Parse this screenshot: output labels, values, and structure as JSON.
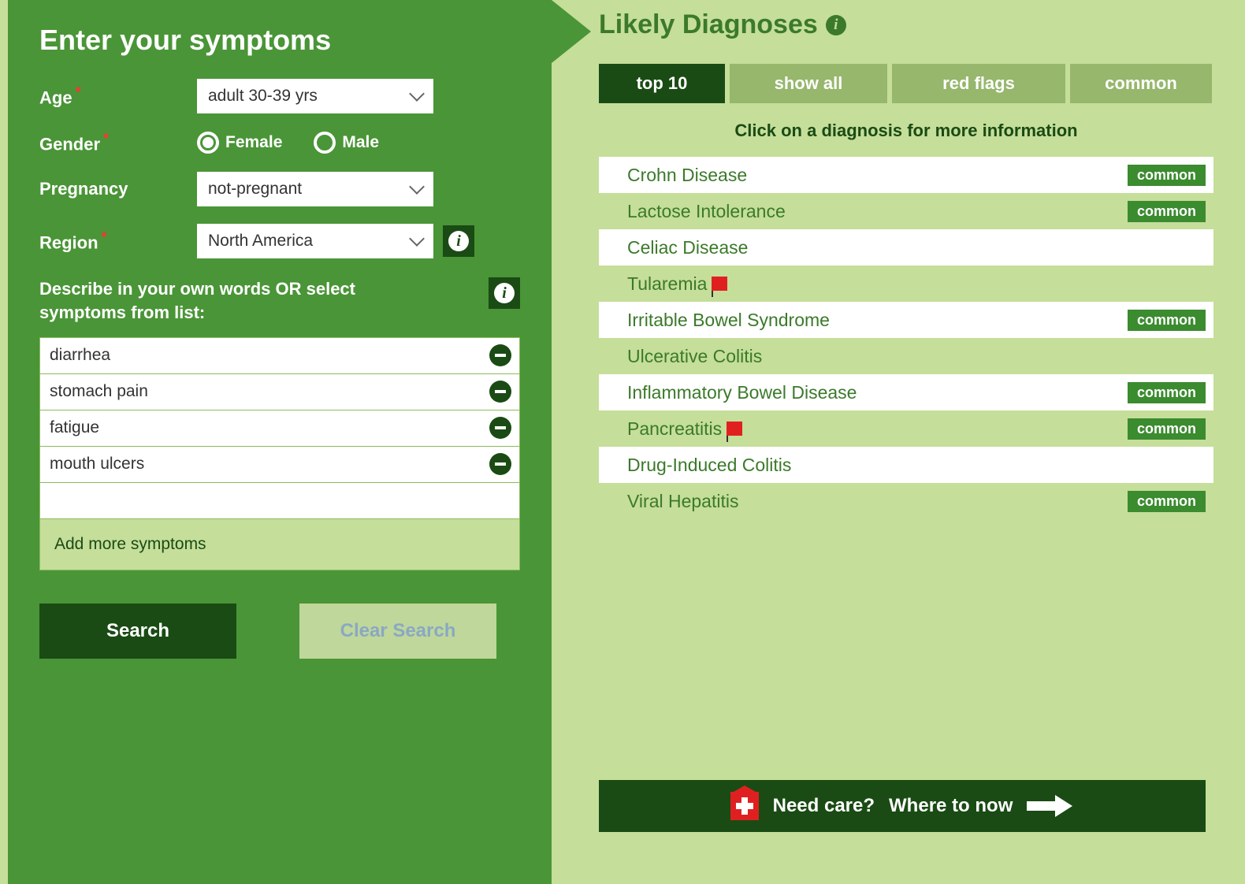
{
  "left": {
    "title": "Enter your symptoms",
    "age_label": "Age",
    "age_value": "adult 30-39 yrs",
    "gender_label": "Gender",
    "gender_options": {
      "female": "Female",
      "male": "Male"
    },
    "gender_selected": "female",
    "pregnancy_label": "Pregnancy",
    "pregnancy_value": "not-pregnant",
    "region_label": "Region",
    "region_value": "North America",
    "describe_label": "Describe in your own words OR select symptoms from list:",
    "symptoms": [
      "diarrhea",
      "stomach pain",
      "fatigue",
      "mouth ulcers"
    ],
    "add_more": "Add more symptoms",
    "search_btn": "Search",
    "clear_btn": "Clear Search"
  },
  "right": {
    "title": "Likely Diagnoses",
    "tabs": [
      "top 10",
      "show all",
      "red flags",
      "common"
    ],
    "active_tab": 0,
    "hint": "Click on a diagnosis for more information",
    "common_label": "common",
    "diagnoses": [
      {
        "name": "Crohn Disease",
        "bg": "white",
        "common": true,
        "flag": false
      },
      {
        "name": "Lactose Intolerance",
        "bg": "green",
        "common": true,
        "flag": false
      },
      {
        "name": "Celiac Disease",
        "bg": "white",
        "common": false,
        "flag": false
      },
      {
        "name": "Tularemia",
        "bg": "green",
        "common": false,
        "flag": true
      },
      {
        "name": "Irritable Bowel Syndrome",
        "bg": "white",
        "common": true,
        "flag": false
      },
      {
        "name": "Ulcerative Colitis",
        "bg": "green",
        "common": false,
        "flag": false
      },
      {
        "name": "Inflammatory Bowel Disease",
        "bg": "white",
        "common": true,
        "flag": false
      },
      {
        "name": "Pancreatitis",
        "bg": "green",
        "common": true,
        "flag": true
      },
      {
        "name": "Drug-Induced Colitis",
        "bg": "white",
        "common": false,
        "flag": false
      },
      {
        "name": "Viral Hepatitis",
        "bg": "green",
        "common": true,
        "flag": false
      }
    ]
  },
  "care": {
    "text1": "Need care?",
    "text2": "Where to now"
  },
  "colors": {
    "panel_green": "#4a9537",
    "light_green": "#c5de9a",
    "dark_green": "#1a4b14",
    "text_green": "#3b7a2a",
    "tab_inactive": "#96b76c",
    "badge_green": "#3b8b2f",
    "red": "#e02020"
  }
}
